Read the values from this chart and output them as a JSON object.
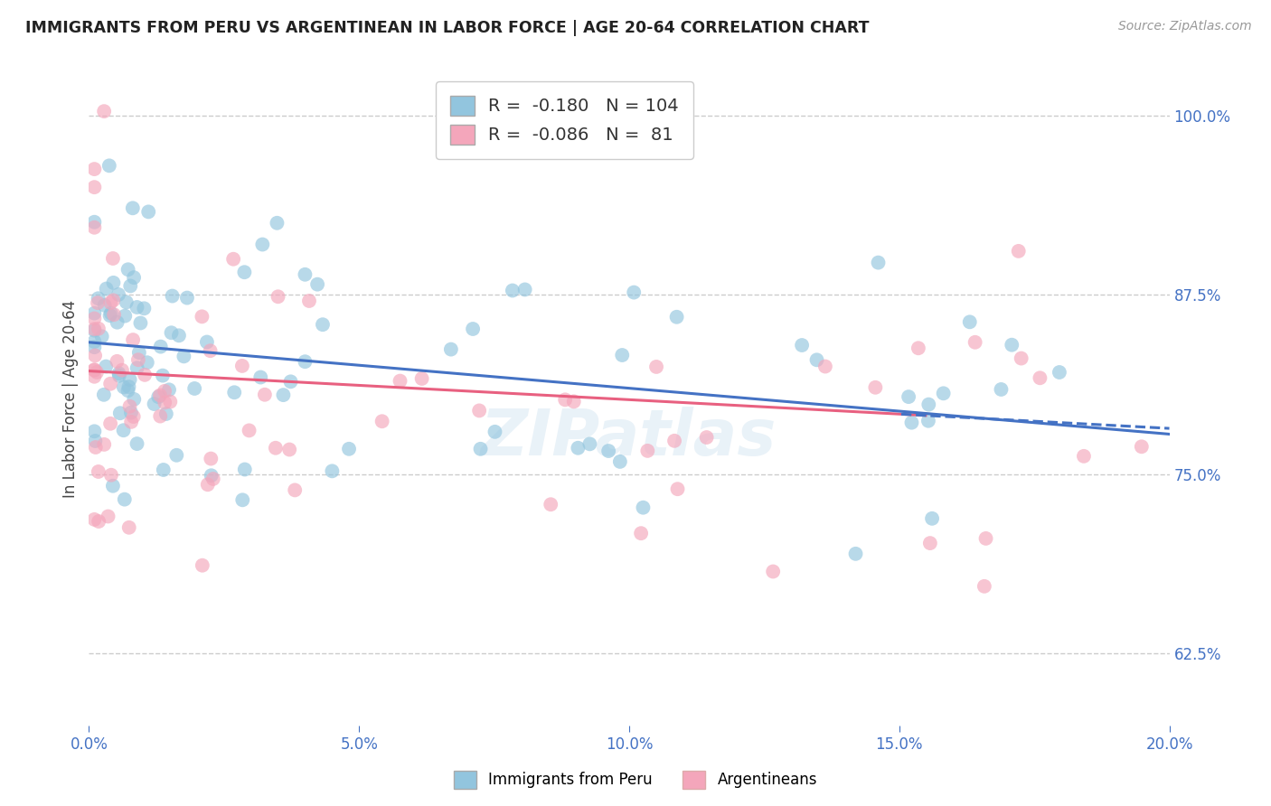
{
  "title": "IMMIGRANTS FROM PERU VS ARGENTINEAN IN LABOR FORCE | AGE 20-64 CORRELATION CHART",
  "source": "Source: ZipAtlas.com",
  "ylabel_text": "In Labor Force | Age 20-64",
  "x_min": 0.0,
  "x_max": 0.2,
  "y_min": 0.575,
  "y_max": 1.03,
  "x_tick_labels": [
    "0.0%",
    "5.0%",
    "10.0%",
    "15.0%",
    "20.0%"
  ],
  "x_tick_vals": [
    0.0,
    0.05,
    0.1,
    0.15,
    0.2
  ],
  "y_tick_labels": [
    "62.5%",
    "75.0%",
    "87.5%",
    "100.0%"
  ],
  "y_tick_vals": [
    0.625,
    0.75,
    0.875,
    1.0
  ],
  "blue_color": "#92c5de",
  "pink_color": "#f4a6bb",
  "blue_line_color": "#4472c4",
  "pink_line_color": "#e86080",
  "legend_label_peru": "Immigrants from Peru",
  "legend_label_arg": "Argentineans",
  "title_color": "#222222",
  "axis_label_color": "#444444",
  "tick_label_color": "#4472c4",
  "grid_color": "#cccccc",
  "background_color": "#ffffff",
  "blue_R": -0.18,
  "blue_N": 104,
  "pink_R": -0.086,
  "pink_N": 81,
  "blue_intercept": 0.842,
  "blue_slope": -0.32,
  "pink_intercept": 0.822,
  "pink_slope": -0.2
}
